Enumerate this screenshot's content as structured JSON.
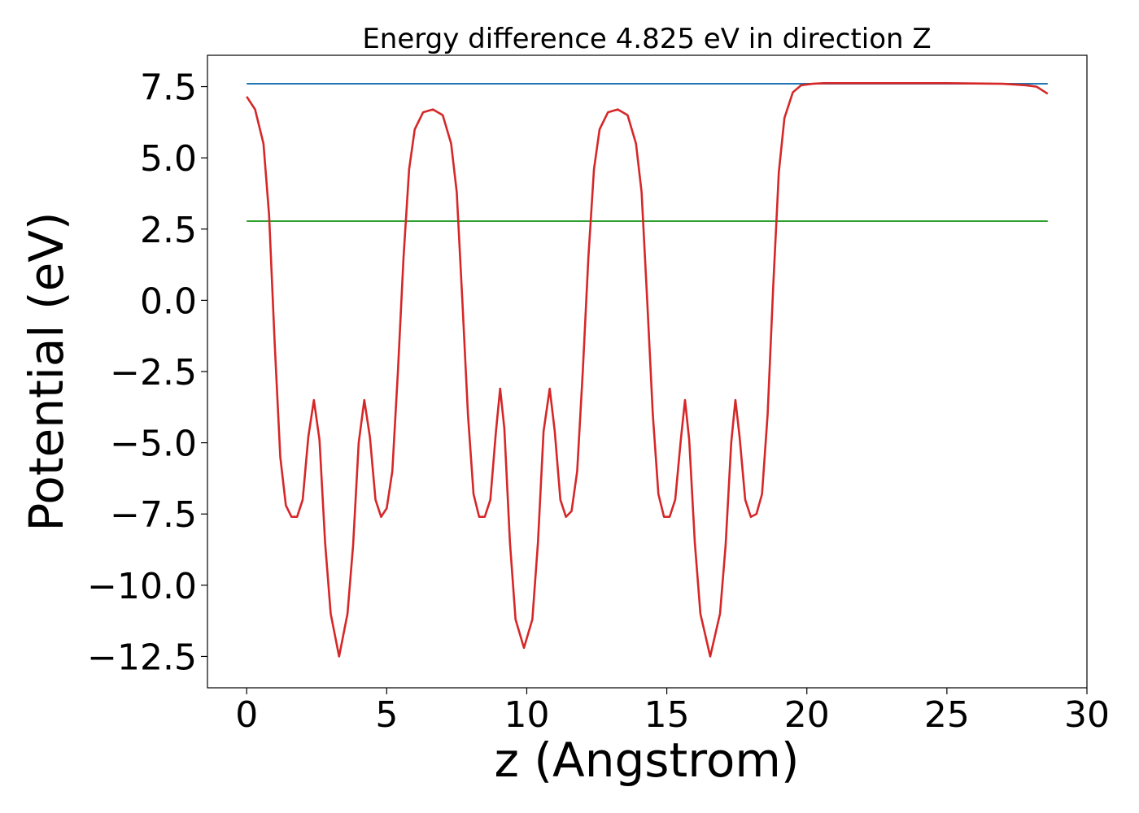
{
  "chart_data": {
    "type": "line",
    "title": "Energy difference 4.825 eV in direction Z",
    "xlabel": "z (Angstrom)",
    "ylabel": "Potential (eV)",
    "xlim": [
      -1.4,
      30
    ],
    "ylim": [
      -13.6,
      8.6
    ],
    "xticks": [
      0,
      5,
      10,
      15,
      20,
      25,
      30
    ],
    "xtick_labels": [
      "0",
      "5",
      "10",
      "15",
      "20",
      "25",
      "30"
    ],
    "yticks": [
      7.5,
      5.0,
      2.5,
      0.0,
      -2.5,
      -5.0,
      -7.5,
      -10.0,
      -12.5
    ],
    "ytick_labels": [
      "7.5",
      "5.0",
      "2.5",
      "0.0",
      "−2.5",
      "−5.0",
      "−7.5",
      "−10.0",
      "−12.5"
    ],
    "grid": false,
    "series": [
      {
        "color": "#1f77b4",
        "x": [
          0,
          28.6
        ],
        "y": [
          7.6,
          7.6
        ]
      },
      {
        "color": "#2ca02c",
        "x": [
          0,
          28.6
        ],
        "y": [
          2.78,
          2.78
        ]
      },
      {
        "color": "#d62728",
        "x": [
          0.0,
          0.3,
          0.6,
          0.8,
          1.0,
          1.2,
          1.4,
          1.6,
          1.8,
          2.0,
          2.2,
          2.4,
          2.6,
          2.8,
          3.0,
          3.3,
          3.6,
          3.8,
          4.0,
          4.2,
          4.4,
          4.6,
          4.8,
          5.0,
          5.2,
          5.4,
          5.6,
          5.8,
          6.0,
          6.3,
          6.65,
          7.0,
          7.3,
          7.5,
          7.7,
          7.9,
          8.1,
          8.3,
          8.5,
          8.7,
          8.9,
          9.05,
          9.2,
          9.4,
          9.6,
          9.9,
          10.2,
          10.4,
          10.6,
          10.82,
          11.0,
          11.2,
          11.4,
          11.6,
          11.8,
          12.0,
          12.2,
          12.4,
          12.6,
          12.9,
          13.25,
          13.6,
          13.9,
          14.1,
          14.3,
          14.5,
          14.7,
          14.9,
          15.1,
          15.3,
          15.5,
          15.65,
          15.8,
          16.0,
          16.2,
          16.55,
          16.9,
          17.1,
          17.3,
          17.45,
          17.6,
          17.8,
          18.0,
          18.2,
          18.4,
          18.6,
          18.8,
          19.0,
          19.2,
          19.5,
          19.8,
          20.2,
          20.6,
          21.5,
          23.0,
          25.0,
          27.0,
          27.8,
          28.2,
          28.6
        ],
        "y": [
          7.15,
          6.7,
          5.5,
          3.0,
          -1.5,
          -5.5,
          -7.2,
          -7.6,
          -7.6,
          -7.0,
          -4.8,
          -3.5,
          -4.9,
          -8.5,
          -11.0,
          -12.5,
          -11.0,
          -8.6,
          -5.0,
          -3.5,
          -4.8,
          -7.0,
          -7.6,
          -7.3,
          -6.0,
          -2.5,
          1.5,
          4.6,
          6.0,
          6.6,
          6.7,
          6.5,
          5.5,
          3.8,
          0.0,
          -4.0,
          -6.8,
          -7.6,
          -7.6,
          -7.0,
          -4.6,
          -3.1,
          -4.5,
          -8.5,
          -11.2,
          -12.2,
          -11.2,
          -8.5,
          -4.6,
          -3.1,
          -4.6,
          -7.0,
          -7.6,
          -7.4,
          -6.0,
          -2.5,
          1.5,
          4.6,
          6.0,
          6.6,
          6.7,
          6.5,
          5.5,
          3.8,
          0.0,
          -4.0,
          -6.8,
          -7.6,
          -7.6,
          -7.0,
          -4.9,
          -3.5,
          -4.9,
          -8.5,
          -11.0,
          -12.5,
          -11.0,
          -8.6,
          -5.0,
          -3.5,
          -4.8,
          -7.0,
          -7.6,
          -7.5,
          -6.8,
          -4.0,
          0.5,
          4.5,
          6.4,
          7.3,
          7.55,
          7.6,
          7.62,
          7.62,
          7.62,
          7.62,
          7.6,
          7.55,
          7.5,
          7.25
        ]
      }
    ]
  }
}
